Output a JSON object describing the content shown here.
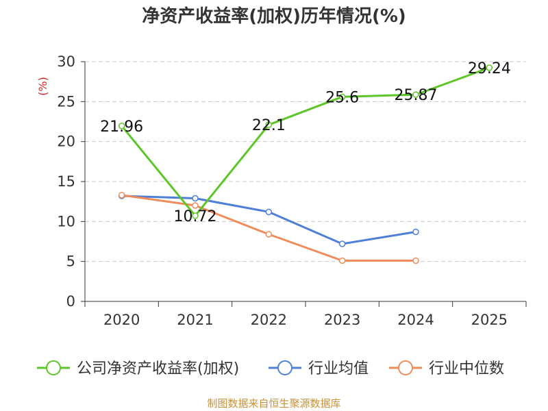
{
  "chart_data": {
    "type": "line",
    "title": "净资产收益率(加权)历年情况(%)",
    "ylabel": "(%)",
    "xlabel": "",
    "categories": [
      "2020",
      "2021",
      "2022",
      "2023",
      "2024",
      "2025"
    ],
    "ylim": [
      0,
      30
    ],
    "yticks": [
      0,
      5,
      10,
      15,
      20,
      25,
      30
    ],
    "grid": true,
    "legend_position": "bottom",
    "series": [
      {
        "name": "公司净资产收益率(加权)",
        "color": "#5cc627",
        "values": [
          21.96,
          10.72,
          22.1,
          25.6,
          25.87,
          29.24
        ],
        "labels": [
          "21.96",
          "10.72",
          "22.1",
          "25.6",
          "25.87",
          "29.24"
        ]
      },
      {
        "name": "行业均值",
        "color": "#4e7fd8",
        "values": [
          13.2,
          12.9,
          11.2,
          7.2,
          8.7,
          null
        ]
      },
      {
        "name": "行业中位数",
        "color": "#f08b5a",
        "values": [
          13.3,
          12.0,
          8.4,
          5.1,
          5.1,
          null
        ]
      }
    ]
  },
  "source": "制图数据来自恒生聚源数据库"
}
